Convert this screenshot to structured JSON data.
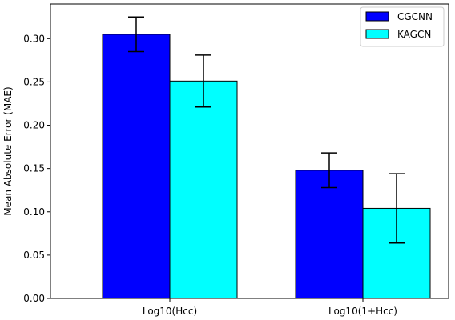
{
  "chart_data": {
    "type": "bar",
    "categories": [
      "Log10(Hcc)",
      "Log10(1+Hcc)"
    ],
    "series": [
      {
        "name": "CGCNN",
        "color": "#0000ff",
        "values": [
          0.305,
          0.148
        ],
        "errors": [
          0.02,
          0.02
        ]
      },
      {
        "name": "KAGCN",
        "color": "#00ffff",
        "values": [
          0.251,
          0.104
        ],
        "errors": [
          0.03,
          0.04
        ]
      }
    ],
    "xlabel": "",
    "ylabel": "Mean Absolute Error (MAE)",
    "ylim": [
      0,
      0.34
    ],
    "yticks": [
      0.0,
      0.05,
      0.1,
      0.15,
      0.2,
      0.25,
      0.3
    ],
    "ytick_labels": [
      "0.00",
      "0.05",
      "0.10",
      "0.15",
      "0.20",
      "0.25",
      "0.30"
    ],
    "grid": false,
    "legend_position": "top-right"
  }
}
